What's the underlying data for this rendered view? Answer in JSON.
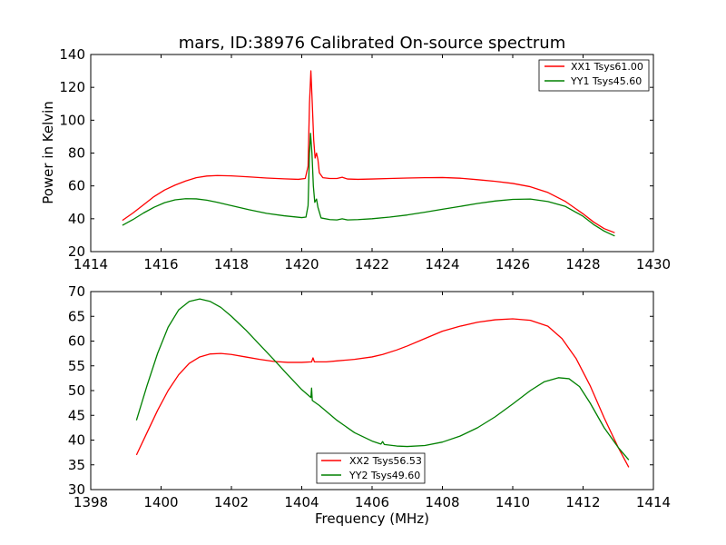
{
  "chart_data": [
    {
      "type": "line",
      "title": "mars, ID:38976 Calibrated On-source spectrum",
      "xlabel": "",
      "ylabel": "Power in Kelvin",
      "xlim": [
        1414,
        1430
      ],
      "ylim": [
        20,
        140
      ],
      "xticks": [
        1414,
        1416,
        1418,
        1420,
        1422,
        1424,
        1426,
        1428,
        1430
      ],
      "yticks": [
        20,
        40,
        60,
        80,
        100,
        120,
        140
      ],
      "grid": false,
      "legend": "top-right",
      "series": [
        {
          "name": "XX1 Tsys61.00",
          "color": "#ff0000",
          "points": [
            [
              1414.9,
              39
            ],
            [
              1415.2,
              43.5
            ],
            [
              1415.5,
              48.5
            ],
            [
              1415.8,
              53.5
            ],
            [
              1416.1,
              57.5
            ],
            [
              1416.4,
              60.5
            ],
            [
              1416.7,
              63
            ],
            [
              1417.0,
              65
            ],
            [
              1417.3,
              66
            ],
            [
              1417.6,
              66.3
            ],
            [
              1418.0,
              66.1
            ],
            [
              1418.5,
              65.5
            ],
            [
              1419.0,
              64.8
            ],
            [
              1419.5,
              64.3
            ],
            [
              1419.9,
              64
            ],
            [
              1420.1,
              64.5
            ],
            [
              1420.18,
              72
            ],
            [
              1420.22,
              110
            ],
            [
              1420.26,
              130
            ],
            [
              1420.3,
              110
            ],
            [
              1420.34,
              88
            ],
            [
              1420.38,
              77
            ],
            [
              1420.42,
              80
            ],
            [
              1420.46,
              76
            ],
            [
              1420.5,
              68
            ],
            [
              1420.6,
              65
            ],
            [
              1420.8,
              64.5
            ],
            [
              1421.0,
              64.5
            ],
            [
              1421.15,
              65.3
            ],
            [
              1421.3,
              64.2
            ],
            [
              1421.6,
              64
            ],
            [
              1422.0,
              64.2
            ],
            [
              1422.5,
              64.5
            ],
            [
              1423.0,
              64.8
            ],
            [
              1423.5,
              65
            ],
            [
              1424.0,
              65.1
            ],
            [
              1424.5,
              64.7
            ],
            [
              1425.0,
              63.8
            ],
            [
              1425.5,
              62.8
            ],
            [
              1426.0,
              61.5
            ],
            [
              1426.5,
              59.5
            ],
            [
              1427.0,
              56
            ],
            [
              1427.5,
              50.5
            ],
            [
              1428.0,
              43
            ],
            [
              1428.3,
              38
            ],
            [
              1428.6,
              34
            ],
            [
              1428.9,
              31.5
            ]
          ]
        },
        {
          "name": "YY1 Tsys45.60",
          "color": "#008000",
          "points": [
            [
              1414.9,
              36
            ],
            [
              1415.2,
              39.5
            ],
            [
              1415.5,
              43.5
            ],
            [
              1415.8,
              47
            ],
            [
              1416.1,
              49.8
            ],
            [
              1416.4,
              51.5
            ],
            [
              1416.7,
              52.2
            ],
            [
              1417.0,
              52.1
            ],
            [
              1417.3,
              51.3
            ],
            [
              1417.6,
              50
            ],
            [
              1418.0,
              48
            ],
            [
              1418.5,
              45.5
            ],
            [
              1419.0,
              43.3
            ],
            [
              1419.5,
              41.8
            ],
            [
              1420.0,
              40.7
            ],
            [
              1420.12,
              41
            ],
            [
              1420.18,
              48
            ],
            [
              1420.22,
              80
            ],
            [
              1420.25,
              92
            ],
            [
              1420.29,
              80
            ],
            [
              1420.33,
              60
            ],
            [
              1420.37,
              50
            ],
            [
              1420.42,
              52
            ],
            [
              1420.46,
              47
            ],
            [
              1420.55,
              40.5
            ],
            [
              1420.8,
              39.5
            ],
            [
              1421.0,
              39.3
            ],
            [
              1421.15,
              40
            ],
            [
              1421.3,
              39.3
            ],
            [
              1421.6,
              39.5
            ],
            [
              1422.0,
              40
            ],
            [
              1422.5,
              41
            ],
            [
              1423.0,
              42.3
            ],
            [
              1423.5,
              44
            ],
            [
              1424.0,
              45.8
            ],
            [
              1424.5,
              47.5
            ],
            [
              1425.0,
              49.3
            ],
            [
              1425.5,
              50.8
            ],
            [
              1426.0,
              51.8
            ],
            [
              1426.5,
              52
            ],
            [
              1427.0,
              50.5
            ],
            [
              1427.5,
              47.5
            ],
            [
              1428.0,
              41.5
            ],
            [
              1428.3,
              36.5
            ],
            [
              1428.6,
              32.5
            ],
            [
              1428.9,
              29.5
            ]
          ]
        }
      ]
    },
    {
      "type": "line",
      "title": "",
      "xlabel": "Frequency (MHz)",
      "ylabel": "",
      "xlim": [
        1398,
        1414
      ],
      "ylim": [
        30,
        70
      ],
      "xticks": [
        1398,
        1400,
        1402,
        1404,
        1406,
        1408,
        1410,
        1412,
        1414
      ],
      "yticks": [
        30,
        35,
        40,
        45,
        50,
        55,
        60,
        65,
        70
      ],
      "grid": false,
      "legend": "lower-center",
      "series": [
        {
          "name": "XX2 Tsys56.53",
          "color": "#ff0000",
          "points": [
            [
              1399.3,
              37
            ],
            [
              1399.6,
              41.5
            ],
            [
              1399.9,
              46
            ],
            [
              1400.2,
              50
            ],
            [
              1400.5,
              53.2
            ],
            [
              1400.8,
              55.5
            ],
            [
              1401.1,
              56.8
            ],
            [
              1401.4,
              57.4
            ],
            [
              1401.7,
              57.5
            ],
            [
              1402.0,
              57.3
            ],
            [
              1402.4,
              56.8
            ],
            [
              1402.8,
              56.3
            ],
            [
              1403.2,
              55.9
            ],
            [
              1403.6,
              55.7
            ],
            [
              1404.0,
              55.7
            ],
            [
              1404.28,
              55.8
            ],
            [
              1404.32,
              56.6
            ],
            [
              1404.36,
              55.8
            ],
            [
              1404.7,
              55.8
            ],
            [
              1405.0,
              56
            ],
            [
              1405.5,
              56.3
            ],
            [
              1406.0,
              56.8
            ],
            [
              1406.3,
              57.3
            ],
            [
              1406.7,
              58.2
            ],
            [
              1407.0,
              59
            ],
            [
              1407.5,
              60.5
            ],
            [
              1408.0,
              62
            ],
            [
              1408.5,
              63
            ],
            [
              1409.0,
              63.8
            ],
            [
              1409.5,
              64.3
            ],
            [
              1410.0,
              64.5
            ],
            [
              1410.5,
              64.2
            ],
            [
              1411.0,
              63
            ],
            [
              1411.4,
              60.5
            ],
            [
              1411.8,
              56.5
            ],
            [
              1412.2,
              51
            ],
            [
              1412.6,
              44.5
            ],
            [
              1413.0,
              38.5
            ],
            [
              1413.3,
              34.5
            ]
          ]
        },
        {
          "name": "YY2 Tsys49.60",
          "color": "#008000",
          "points": [
            [
              1399.3,
              44
            ],
            [
              1399.6,
              51
            ],
            [
              1399.9,
              57.5
            ],
            [
              1400.2,
              62.8
            ],
            [
              1400.5,
              66.3
            ],
            [
              1400.8,
              68
            ],
            [
              1401.1,
              68.5
            ],
            [
              1401.4,
              68
            ],
            [
              1401.7,
              66.8
            ],
            [
              1402.0,
              65
            ],
            [
              1402.4,
              62.3
            ],
            [
              1402.8,
              59.3
            ],
            [
              1403.2,
              56.3
            ],
            [
              1403.6,
              53.2
            ],
            [
              1404.0,
              50.2
            ],
            [
              1404.26,
              48.6
            ],
            [
              1404.28,
              50.5
            ],
            [
              1404.3,
              48
            ],
            [
              1404.5,
              47
            ],
            [
              1405.0,
              44
            ],
            [
              1405.5,
              41.5
            ],
            [
              1406.0,
              39.8
            ],
            [
              1406.25,
              39.2
            ],
            [
              1406.3,
              39.7
            ],
            [
              1406.35,
              39.1
            ],
            [
              1406.7,
              38.8
            ],
            [
              1407.0,
              38.7
            ],
            [
              1407.5,
              38.9
            ],
            [
              1408.0,
              39.6
            ],
            [
              1408.5,
              40.8
            ],
            [
              1409.0,
              42.5
            ],
            [
              1409.5,
              44.7
            ],
            [
              1410.0,
              47.3
            ],
            [
              1410.5,
              50
            ],
            [
              1410.9,
              51.8
            ],
            [
              1411.3,
              52.6
            ],
            [
              1411.6,
              52.4
            ],
            [
              1411.9,
              50.8
            ],
            [
              1412.2,
              47.5
            ],
            [
              1412.6,
              42.5
            ],
            [
              1413.0,
              38.5
            ],
            [
              1413.3,
              36
            ]
          ]
        }
      ]
    }
  ]
}
